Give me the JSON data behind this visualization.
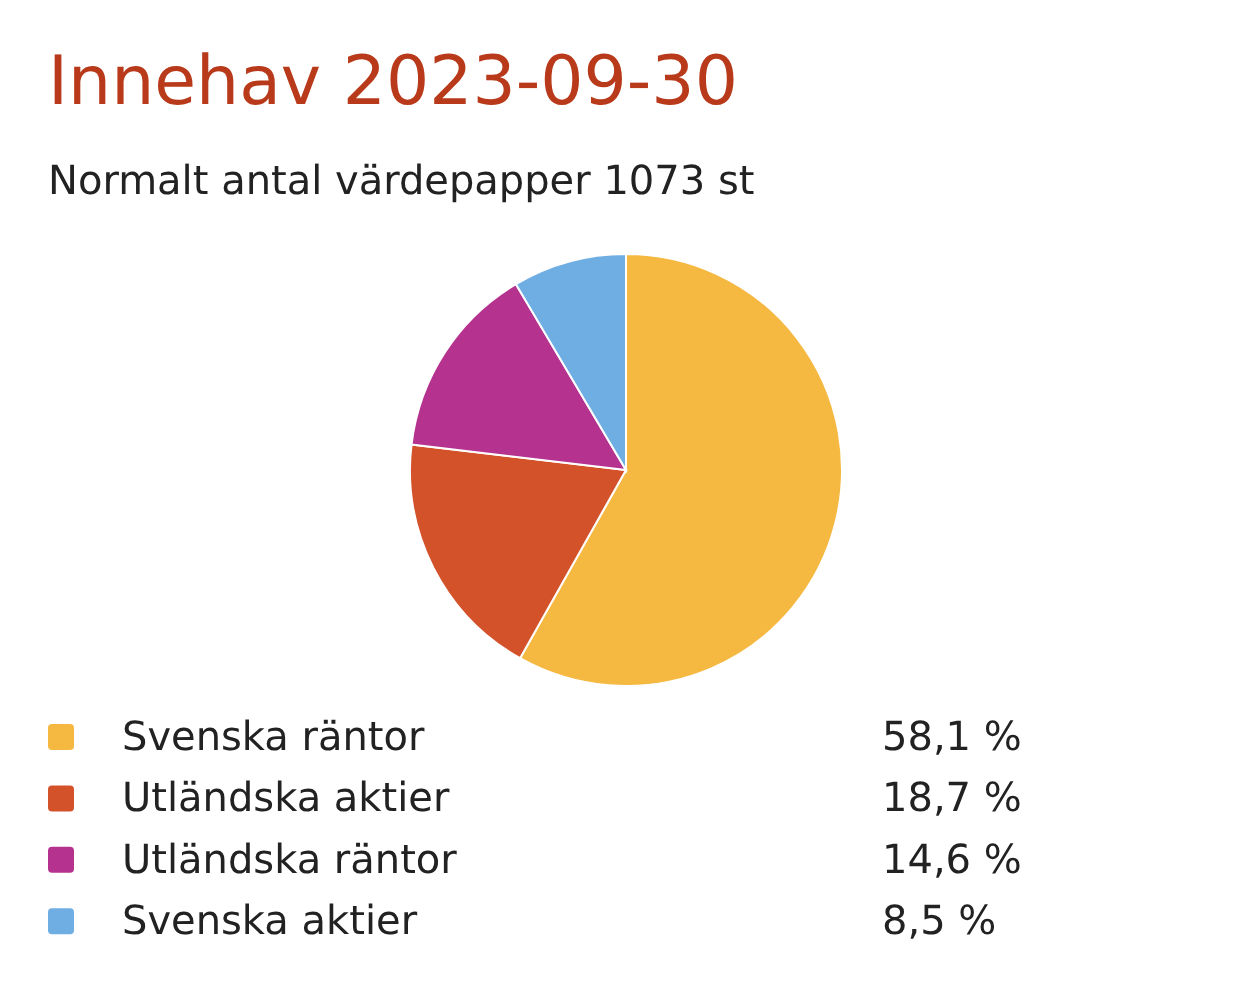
{
  "chart_data": {
    "type": "pie",
    "title": "Innehav 2023-09-30",
    "subtitle": "Normalt antal värdepapper 1073 st",
    "categories": [
      "Svenska räntor",
      "Utländska aktier",
      "Utländska räntor",
      "Svenska aktier"
    ],
    "values": [
      58.1,
      18.7,
      14.6,
      8.5
    ],
    "colors": [
      "#f5b942",
      "#d4522a",
      "#b5338f",
      "#6eaee3"
    ],
    "value_labels": [
      "58,1 %",
      "18,7 %",
      "14,6 %",
      "8,5 %"
    ],
    "legend": "bottom"
  }
}
